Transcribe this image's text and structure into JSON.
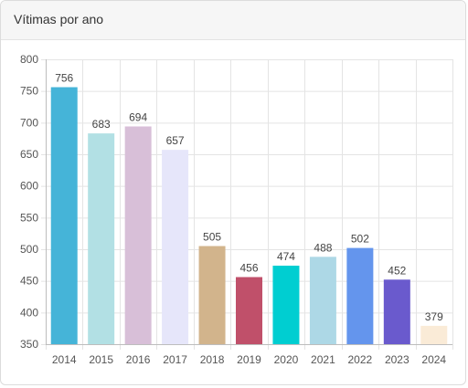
{
  "card": {
    "title": "Vítimas por ano"
  },
  "chart_data": {
    "type": "bar",
    "title": "Vítimas por ano",
    "categories": [
      "2014",
      "2015",
      "2016",
      "2017",
      "2018",
      "2019",
      "2020",
      "2021",
      "2022",
      "2023",
      "2024"
    ],
    "values": [
      756,
      683,
      694,
      657,
      505,
      456,
      474,
      488,
      502,
      452,
      379
    ],
    "colors": [
      "#45b4d8",
      "#b2e0e4",
      "#d8bfd8",
      "#e6e6fa",
      "#d2b48c",
      "#c0506a",
      "#00ced1",
      "#add8e6",
      "#6495ed",
      "#6a5acd",
      "#faebd7"
    ],
    "yticks": [
      350,
      400,
      450,
      500,
      550,
      600,
      650,
      700,
      750,
      800
    ],
    "ylim": [
      350,
      800
    ],
    "xlabel": "",
    "ylabel": "",
    "grid": true,
    "legend": "none"
  }
}
